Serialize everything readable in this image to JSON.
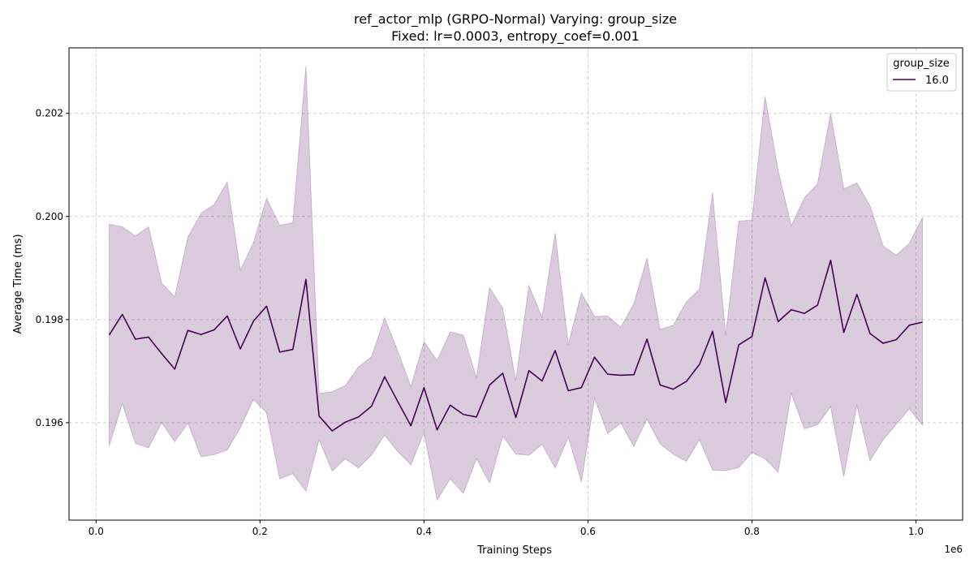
{
  "chart_data": {
    "type": "line",
    "title_line1": "ref_actor_mlp (GRPO-Normal) Varying: group_size",
    "title_line2": "Fixed: lr=0.0003, entropy_coef=0.001",
    "xlabel": "Training Steps",
    "ylabel": "Average Time (ms)",
    "x_multiplier_label": "1e6",
    "xlim": [
      -0.033,
      1.057
    ],
    "ylim": [
      0.19411,
      0.20327
    ],
    "x_ticks": [
      0.0,
      0.2,
      0.4,
      0.6,
      0.8,
      1.0
    ],
    "x_tick_labels": [
      "0.0",
      "0.2",
      "0.4",
      "0.6",
      "0.8",
      "1.0"
    ],
    "y_ticks": [
      0.196,
      0.198,
      0.2,
      0.202
    ],
    "y_tick_labels": [
      "0.196",
      "0.198",
      "0.200",
      "0.202"
    ],
    "grid": true,
    "legend_title": "group_size",
    "legend_placement": "top-right",
    "colors": {
      "line": "#440154",
      "band": "#440154"
    },
    "series": [
      {
        "name": "16.0",
        "x": [
          0.016,
          0.032,
          0.048,
          0.064,
          0.08,
          0.096,
          0.112,
          0.128,
          0.144,
          0.16,
          0.176,
          0.192,
          0.208,
          0.224,
          0.24,
          0.256,
          0.272,
          0.288,
          0.304,
          0.32,
          0.336,
          0.352,
          0.368,
          0.384,
          0.4,
          0.416,
          0.432,
          0.448,
          0.464,
          0.48,
          0.496,
          0.512,
          0.528,
          0.544,
          0.56,
          0.576,
          0.592,
          0.608,
          0.624,
          0.64,
          0.656,
          0.672,
          0.688,
          0.704,
          0.72,
          0.736,
          0.752,
          0.768,
          0.784,
          0.8,
          0.816,
          0.832,
          0.848,
          0.864,
          0.88,
          0.896,
          0.912,
          0.928,
          0.944,
          0.96,
          0.976,
          0.992,
          1.008
        ],
        "y": [
          0.1977,
          0.1981,
          0.19762,
          0.19766,
          0.19734,
          0.19704,
          0.19779,
          0.19771,
          0.1978,
          0.19807,
          0.19743,
          0.19797,
          0.19826,
          0.19737,
          0.19742,
          0.19878,
          0.19613,
          0.19584,
          0.19601,
          0.19611,
          0.19632,
          0.19689,
          0.19641,
          0.19594,
          0.19668,
          0.19586,
          0.19634,
          0.19616,
          0.19611,
          0.19673,
          0.19696,
          0.1961,
          0.19701,
          0.19681,
          0.1974,
          0.19662,
          0.19668,
          0.19727,
          0.19694,
          0.19692,
          0.19693,
          0.19762,
          0.19673,
          0.19665,
          0.1968,
          0.19713,
          0.19777,
          0.19639,
          0.19751,
          0.19767,
          0.19881,
          0.19796,
          0.19819,
          0.19812,
          0.19828,
          0.19915,
          0.19775,
          0.19849,
          0.19773,
          0.19754,
          0.19761,
          0.19789,
          0.19795
        ],
        "y_lower": [
          0.19555,
          0.19637,
          0.1956,
          0.19551,
          0.196,
          0.19563,
          0.19599,
          0.19534,
          0.19538,
          0.19547,
          0.1959,
          0.19645,
          0.19619,
          0.19491,
          0.19501,
          0.19467,
          0.19567,
          0.19506,
          0.1953,
          0.19512,
          0.19537,
          0.19576,
          0.19544,
          0.19518,
          0.19581,
          0.1945,
          0.19491,
          0.19463,
          0.1953,
          0.19483,
          0.19574,
          0.19539,
          0.19537,
          0.19558,
          0.19512,
          0.19572,
          0.19485,
          0.19647,
          0.19579,
          0.19599,
          0.19554,
          0.19607,
          0.19559,
          0.19539,
          0.19525,
          0.19567,
          0.19508,
          0.19507,
          0.19513,
          0.19542,
          0.1953,
          0.19504,
          0.19657,
          0.19588,
          0.19596,
          0.19631,
          0.19495,
          0.19634,
          0.19526,
          0.19567,
          0.19597,
          0.19627,
          0.19595
        ],
        "y_upper": [
          0.19985,
          0.1998,
          0.19962,
          0.1998,
          0.19871,
          0.19844,
          0.1996,
          0.20006,
          0.20023,
          0.20067,
          0.19896,
          0.19949,
          0.20035,
          0.19983,
          0.19988,
          0.20292,
          0.19657,
          0.1966,
          0.19672,
          0.19708,
          0.19728,
          0.19803,
          0.19739,
          0.1967,
          0.19757,
          0.19721,
          0.19776,
          0.1977,
          0.19687,
          0.19862,
          0.19822,
          0.19682,
          0.19866,
          0.19804,
          0.19968,
          0.19751,
          0.19852,
          0.19806,
          0.19807,
          0.19785,
          0.19831,
          0.19919,
          0.19781,
          0.19789,
          0.19834,
          0.19859,
          0.20046,
          0.19769,
          0.19991,
          0.19993,
          0.20233,
          0.20089,
          0.19982,
          0.20036,
          0.20063,
          0.202,
          0.20054,
          0.20065,
          0.20021,
          0.19943,
          0.19925,
          0.19948,
          0.19998
        ]
      }
    ]
  }
}
